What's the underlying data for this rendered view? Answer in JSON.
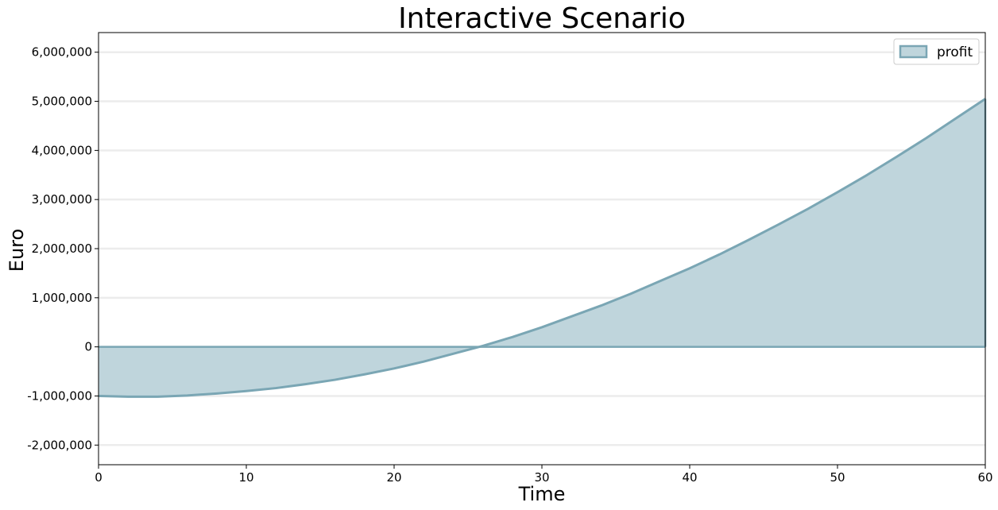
{
  "chart_data": {
    "type": "area",
    "title": "Interactive Scenario",
    "xlabel": "Time",
    "ylabel": "Euro",
    "xlim": [
      0,
      60
    ],
    "ylim": [
      -2400000,
      6400000
    ],
    "xticks": [
      0,
      10,
      20,
      30,
      40,
      50,
      60
    ],
    "yticks": [
      -2000000,
      -1000000,
      0,
      1000000,
      2000000,
      3000000,
      4000000,
      5000000,
      6000000
    ],
    "ytick_labels": [
      "-2,000,000",
      "-1,000,000",
      "0",
      "1,000,000",
      "2,000,000",
      "3,000,000",
      "4,000,000",
      "5,000,000",
      "6,000,000"
    ],
    "grid": "horizontal",
    "legend_position": "top-right",
    "series": [
      {
        "name": "profit",
        "color": "#7aa6b4",
        "fill_color": "#bfd5dc",
        "x": [
          0,
          2,
          4,
          6,
          8,
          10,
          12,
          14,
          16,
          18,
          20,
          22,
          24,
          26,
          28,
          30,
          32,
          34,
          36,
          38,
          40,
          42,
          44,
          46,
          48,
          50,
          52,
          54,
          56,
          58,
          60
        ],
        "values": [
          -1000000,
          -1015000,
          -1015000,
          -990000,
          -950000,
          -900000,
          -840000,
          -760000,
          -670000,
          -560000,
          -440000,
          -300000,
          -140000,
          20000,
          200000,
          400000,
          620000,
          840000,
          1080000,
          1340000,
          1600000,
          1880000,
          2180000,
          2490000,
          2810000,
          3150000,
          3500000,
          3870000,
          4250000,
          4650000,
          5050000
        ]
      }
    ]
  }
}
